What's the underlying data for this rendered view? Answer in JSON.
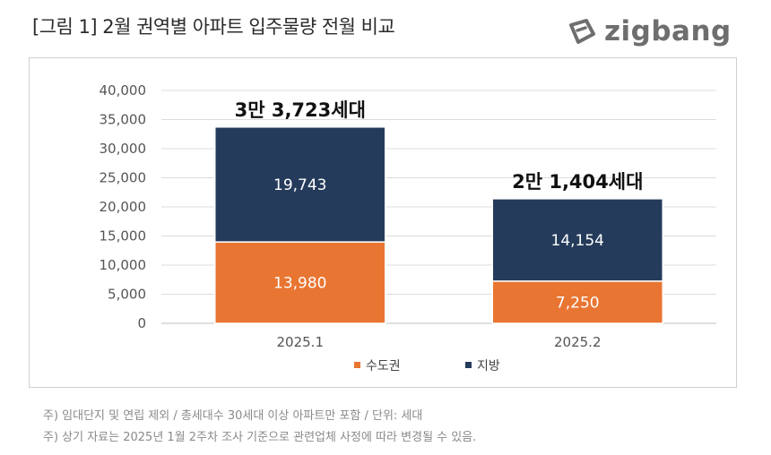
{
  "header": {
    "title": "[그림 1] 2월 권역별 아파트 입주물량 전월 비교",
    "brand": "zigbang",
    "brand_icon": "zigbang-logo-icon"
  },
  "chart_data": {
    "type": "bar",
    "stacked": true,
    "categories": [
      "2025.1",
      "2025.2"
    ],
    "series": [
      {
        "name": "수도권",
        "values": [
          13980,
          7250
        ],
        "labels": [
          "13,980",
          "7,250"
        ],
        "color": "#E97532"
      },
      {
        "name": "지방",
        "values": [
          19743,
          14154
        ],
        "labels": [
          "19,743",
          "14,154"
        ],
        "color": "#253B5B"
      }
    ],
    "totals": [
      "3만 3,723세대",
      "2만 1,404세대"
    ],
    "y_ticks": [
      "0",
      "5,000",
      "10,000",
      "15,000",
      "20,000",
      "25,000",
      "30,000",
      "35,000",
      "40,000"
    ],
    "ylim": [
      0,
      40000
    ],
    "grid": true,
    "legend_position": "bottom-center"
  },
  "notes": [
    "주) 임대단지 및 연립 제외 / 총세대수 30세대 이상 아파트만 포함 / 단위: 세대",
    "주) 상기 자료는 2025년 1월 2주차 조사 기준으로 관련업체 사정에 따라 변경될 수 있음."
  ]
}
